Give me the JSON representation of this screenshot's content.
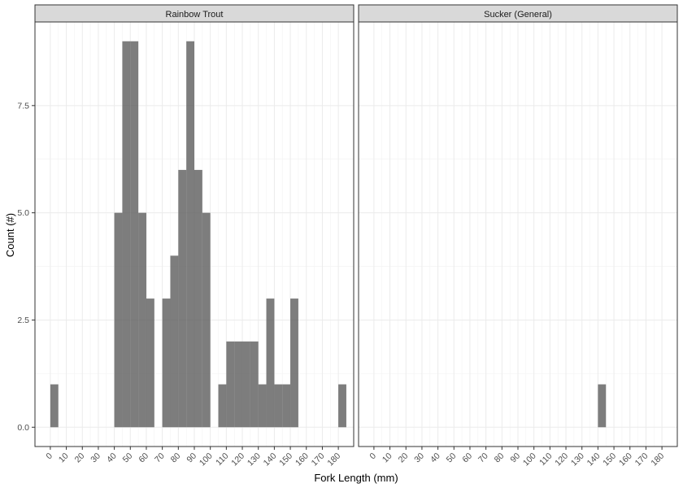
{
  "chart_data": {
    "type": "bar",
    "xlabel": "Fork Length (mm)",
    "ylabel": "Count (#)",
    "xlim": [
      -9.6,
      189.6
    ],
    "ylim": [
      -0.45,
      9.45
    ],
    "x_ticks": [
      0,
      10,
      20,
      30,
      40,
      50,
      60,
      70,
      80,
      90,
      100,
      110,
      120,
      130,
      140,
      150,
      160,
      170,
      180
    ],
    "y_ticks": [
      0.0,
      2.5,
      5.0,
      7.5
    ],
    "y_tick_labels": [
      "0.0",
      "2.5",
      "5.0",
      "7.5"
    ],
    "bin_width": 5,
    "grid": true,
    "bar_color": "#595959",
    "bar_opacity": 0.78,
    "panels": [
      {
        "title": "Rainbow Trout",
        "bins": [
          {
            "x": 2.5,
            "count": 1
          },
          {
            "x": 42.5,
            "count": 5
          },
          {
            "x": 47.5,
            "count": 9
          },
          {
            "x": 52.5,
            "count": 9
          },
          {
            "x": 57.5,
            "count": 5
          },
          {
            "x": 62.5,
            "count": 3
          },
          {
            "x": 72.5,
            "count": 3
          },
          {
            "x": 77.5,
            "count": 4
          },
          {
            "x": 82.5,
            "count": 6
          },
          {
            "x": 87.5,
            "count": 9
          },
          {
            "x": 92.5,
            "count": 6
          },
          {
            "x": 97.5,
            "count": 5
          },
          {
            "x": 107.5,
            "count": 1
          },
          {
            "x": 112.5,
            "count": 2
          },
          {
            "x": 117.5,
            "count": 2
          },
          {
            "x": 122.5,
            "count": 2
          },
          {
            "x": 127.5,
            "count": 2
          },
          {
            "x": 132.5,
            "count": 1
          },
          {
            "x": 137.5,
            "count": 3
          },
          {
            "x": 142.5,
            "count": 1
          },
          {
            "x": 147.5,
            "count": 1
          },
          {
            "x": 152.5,
            "count": 3
          },
          {
            "x": 182.5,
            "count": 1
          }
        ]
      },
      {
        "title": "Sucker (General)",
        "bins": [
          {
            "x": 142.5,
            "count": 1
          }
        ]
      }
    ]
  }
}
